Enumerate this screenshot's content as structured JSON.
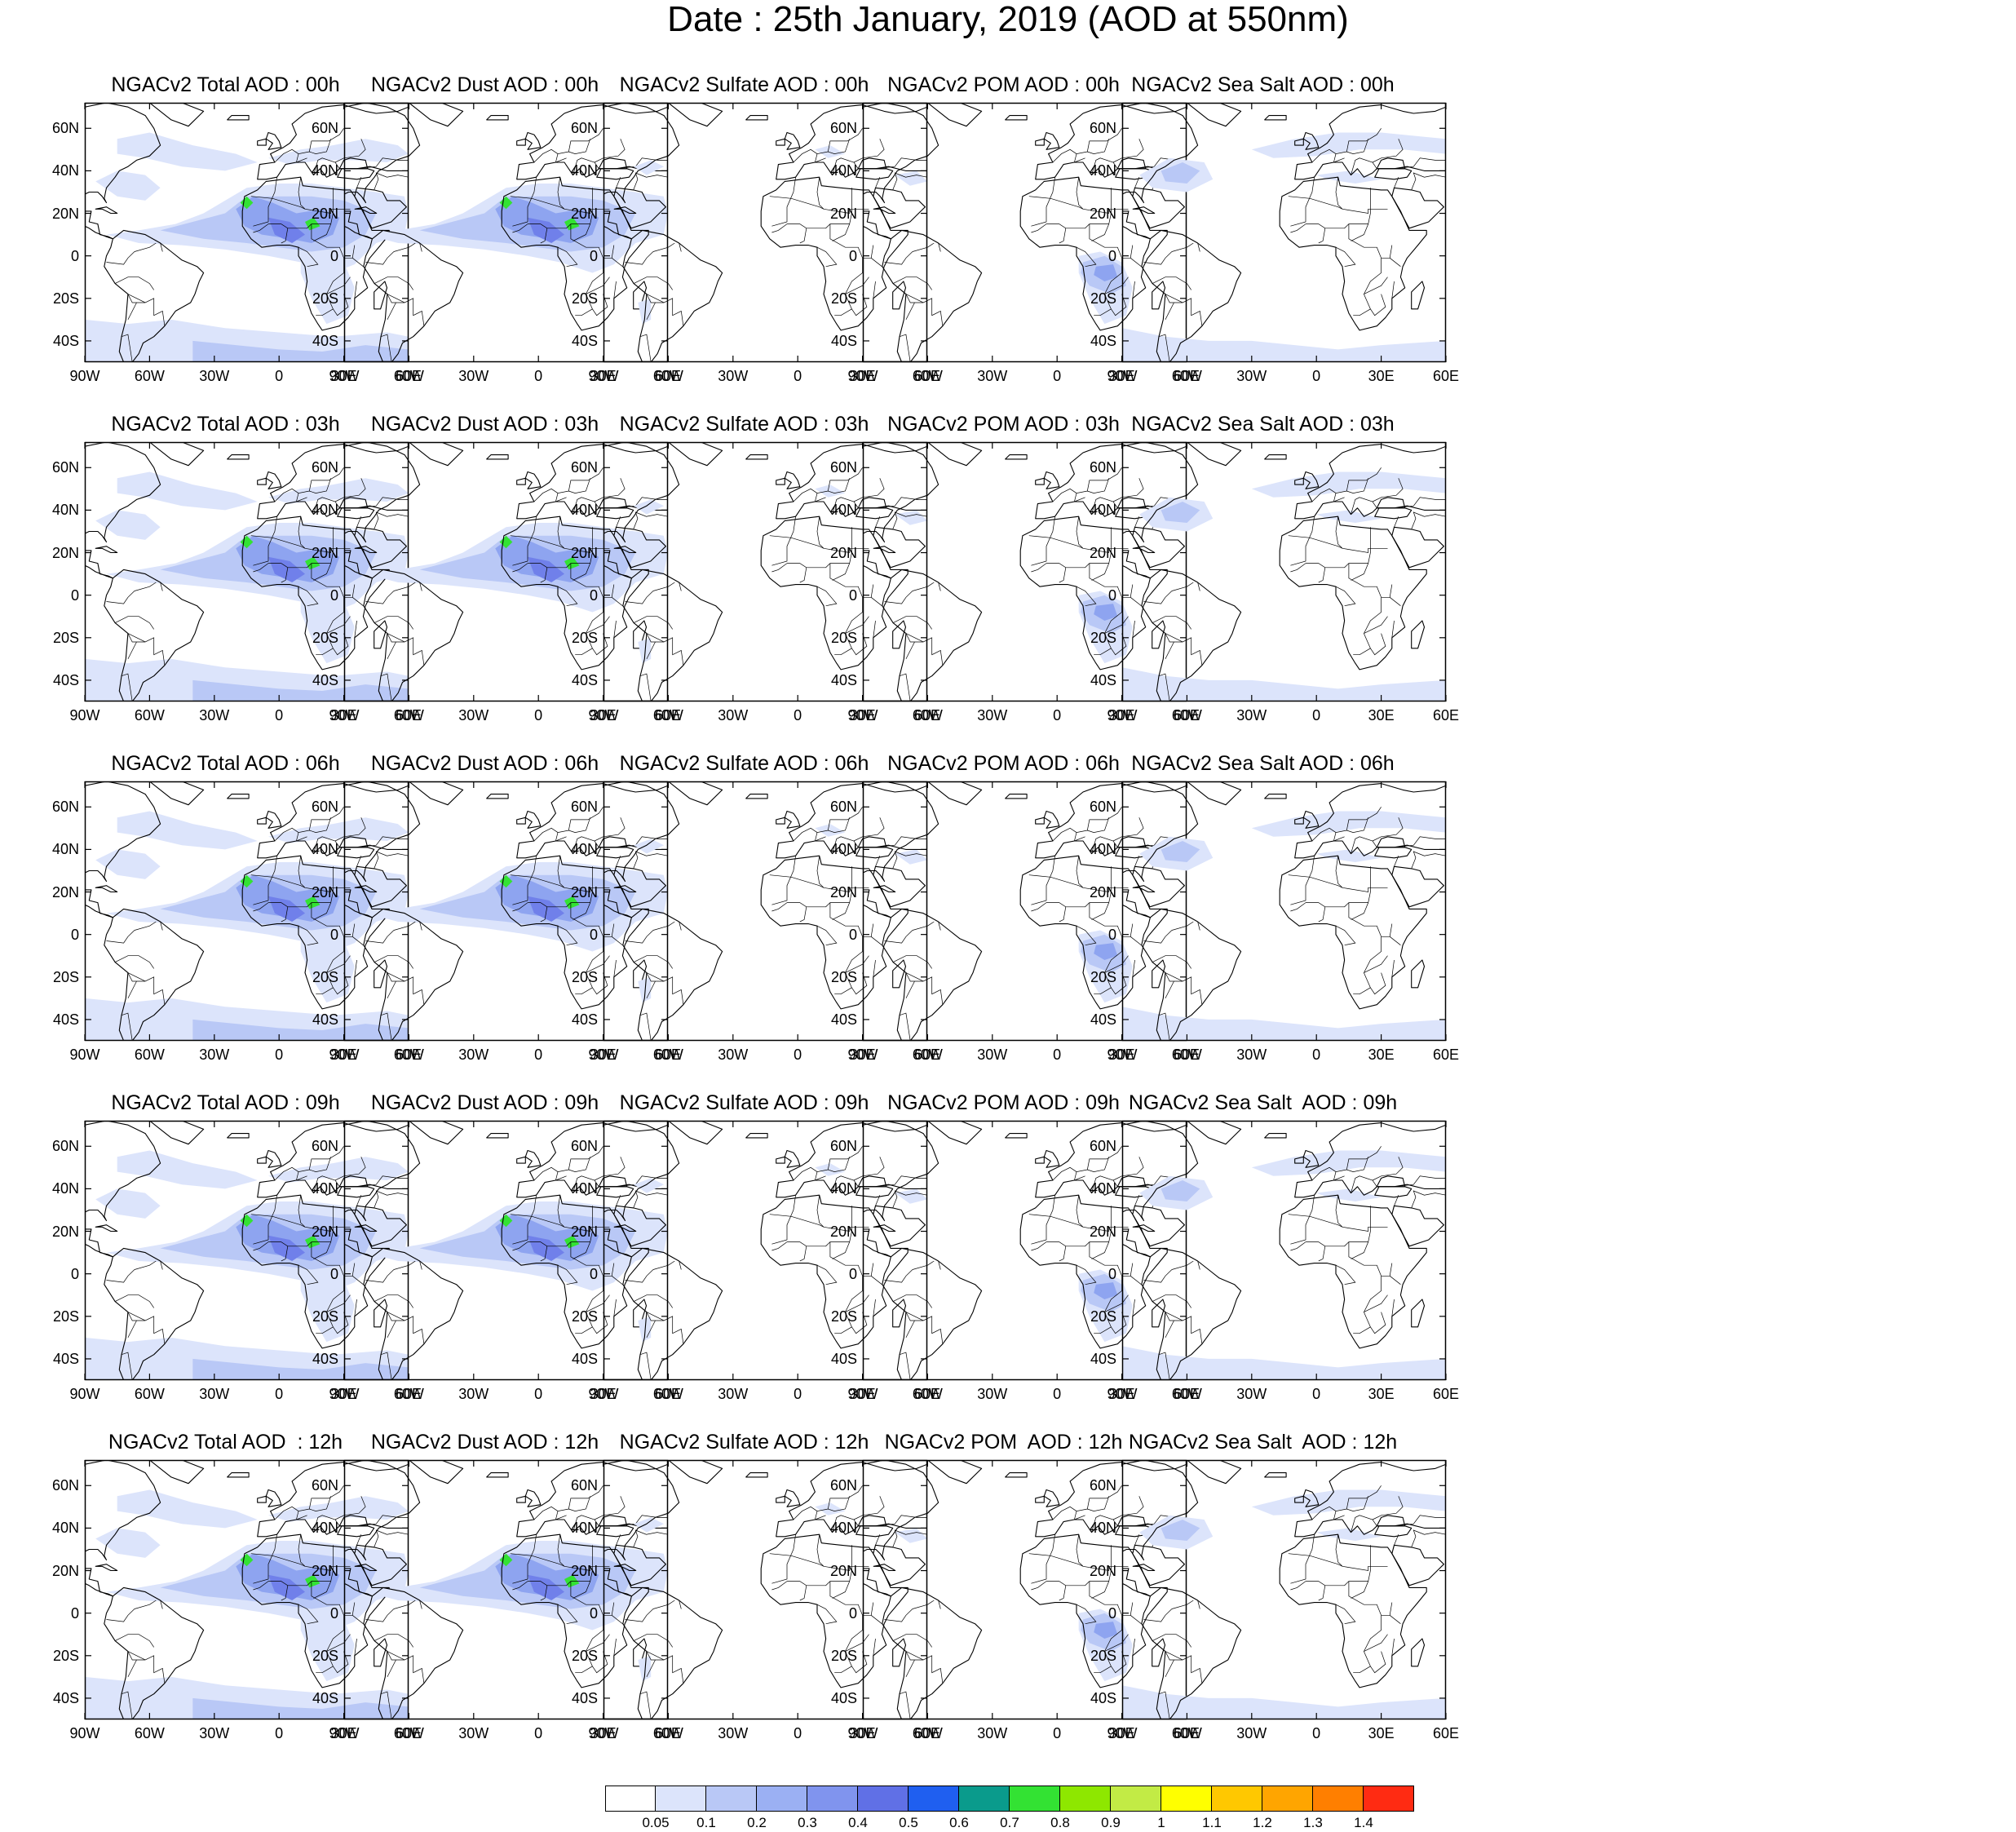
{
  "title": "Date : 25th January, 2019 (AOD at 550nm)",
  "panels": [
    [
      "NGACv2 Total AOD : 00h",
      "NGACv2 Dust AOD : 00h",
      "NGACv2 Sulfate AOD : 00h",
      "NGACv2 POM AOD : 00h",
      "NGACv2 Sea Salt AOD : 00h"
    ],
    [
      "NGACv2 Total AOD : 03h",
      "NGACv2 Dust AOD : 03h",
      "NGACv2 Sulfate AOD : 03h",
      "NGACv2 POM AOD : 03h",
      "NGACv2 Sea Salt AOD : 03h"
    ],
    [
      "NGACv2 Total AOD : 06h",
      "NGACv2 Dust AOD : 06h",
      "NGACv2 Sulfate AOD : 06h",
      "NGACv2 POM AOD : 06h",
      "NGACv2 Sea Salt AOD : 06h"
    ],
    [
      "NGACv2 Total AOD : 09h",
      "NGACv2 Dust AOD : 09h",
      "NGACv2 Sulfate AOD : 09h",
      "NGACv2 POM AOD : 09h",
      "NGACv2 Sea Salt  AOD : 09h"
    ],
    [
      "NGACv2 Total AOD  : 12h",
      "NGACv2 Dust AOD : 12h",
      "NGACv2 Sulfate AOD : 12h",
      "NGACv2 POM  AOD : 12h",
      "NGACv2 Sea Salt  AOD : 12h"
    ]
  ],
  "lat_labels": [
    "60N",
    "40N",
    "20N",
    "0",
    "20S",
    "40S"
  ],
  "lon_labels": [
    "90W",
    "60W",
    "30W",
    "0",
    "30E",
    "60E"
  ],
  "colorbar": {
    "labels": [
      "0.05",
      "0.1",
      "0.2",
      "0.3",
      "0.4",
      "0.5",
      "0.6",
      "0.7",
      "0.8",
      "0.9",
      "1",
      "1.1",
      "1.2",
      "1.3",
      "1.4"
    ],
    "colors": [
      "#ffffff",
      "#dce4fb",
      "#b9c8f6",
      "#9bb0f3",
      "#8094ee",
      "#6070e6",
      "#1f5ff0",
      "#0a9b8c",
      "#33e233",
      "#8ee700",
      "#c2eb45",
      "#ffff00",
      "#ffc800",
      "#ffa500",
      "#ff7f00",
      "#ff2b12"
    ]
  },
  "map": {
    "aerosol_colors": {
      "light": "#dce4fb",
      "mid": "#b9c8f6",
      "strong": "#8ea4f0",
      "deep": "#7080ea",
      "core": "#5a6be3",
      "hot": "#33e233"
    },
    "coastline_color": "#000000"
  }
}
